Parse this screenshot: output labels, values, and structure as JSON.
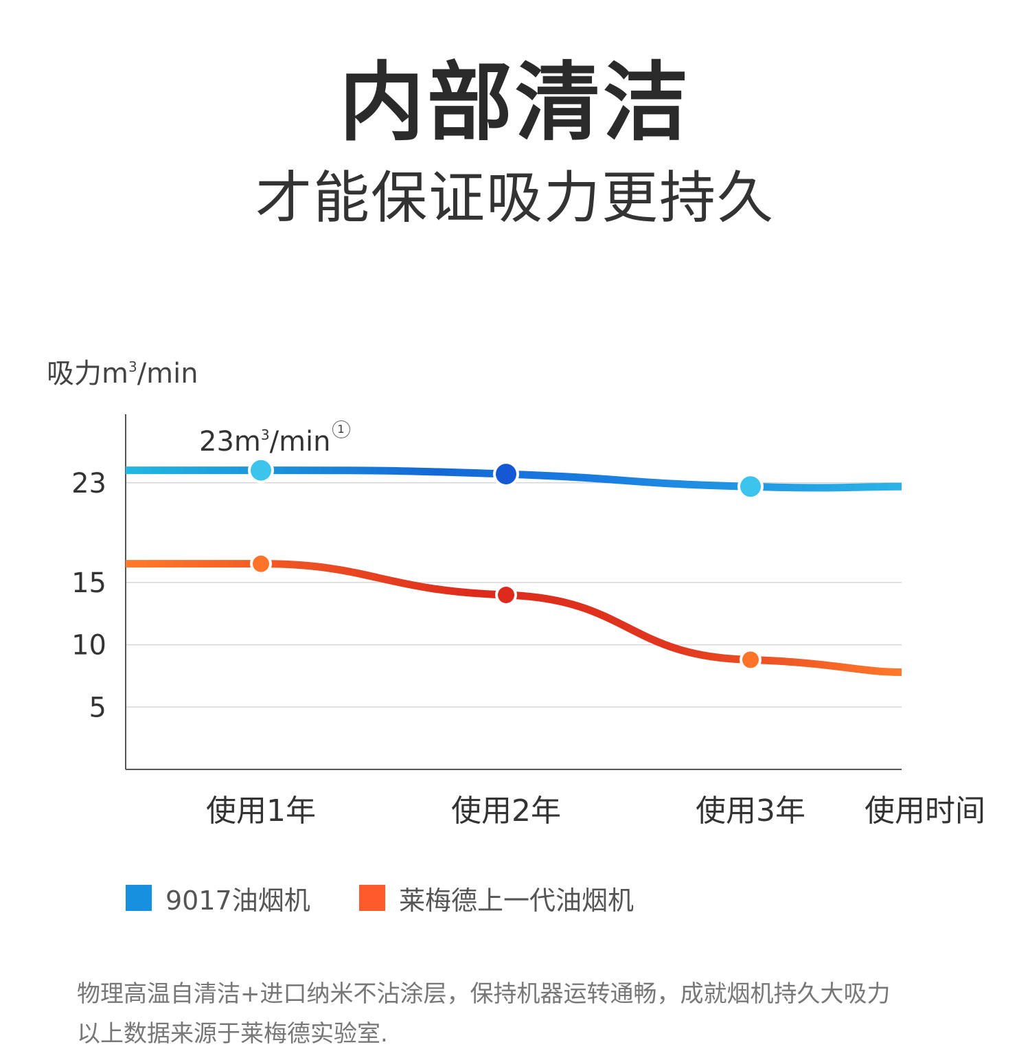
{
  "title": "内部清洁",
  "subtitle": "才能保证吸力更持久",
  "chart_data": {
    "type": "line",
    "ylabel_prefix": "吸力m",
    "ylabel_sup": "3",
    "ylabel_suffix": "/min",
    "yticks": [
      5,
      10,
      15,
      23
    ],
    "ylim": [
      0,
      28.5
    ],
    "categories": [
      "使用1年",
      "使用2年",
      "使用3年"
    ],
    "x_axis_end_label": "使用时间",
    "annotation": {
      "prefix": "23m",
      "sup": "3",
      "suffix": "/min",
      "mark": "1"
    },
    "grid": true,
    "series": [
      {
        "name": "9017油烟机",
        "values": [
          24,
          23.7,
          22.7
        ],
        "color": "#1890e0"
      },
      {
        "name": "莱梅德上一代油烟机",
        "values": [
          16.5,
          14,
          8.8
        ],
        "color": "#ff5a2c"
      }
    ]
  },
  "legend": [
    {
      "label": "9017油烟机",
      "color": "#1890e0"
    },
    {
      "label": "莱梅德上一代油烟机",
      "color": "#ff5a2c"
    }
  ],
  "footnote": {
    "line1": "物理高温自清洁+进口纳米不沾涂层，保持机器运转通畅，成就烟机持久大吸力",
    "line2": "以上数据来源于莱梅德实验室."
  }
}
